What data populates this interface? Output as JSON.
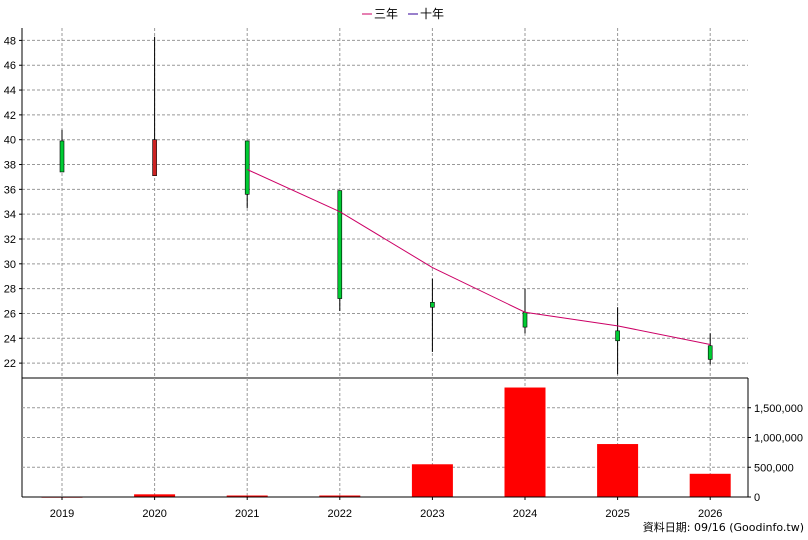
{
  "chart_data": {
    "type": "candlestick",
    "legend": [
      {
        "name": "三年",
        "color": "#cc0066"
      },
      {
        "name": "十年",
        "color": "#330099"
      }
    ],
    "legend_position": "top-center",
    "grid": true,
    "years": [
      "2019",
      "2020",
      "2021",
      "2022",
      "2023",
      "2024",
      "2025",
      "2026"
    ],
    "price_axis": {
      "ylim": [
        20.8,
        49
      ],
      "ticks": [
        "22",
        "24",
        "26",
        "28",
        "30",
        "32",
        "34",
        "36",
        "38",
        "40",
        "42",
        "44",
        "46",
        "48"
      ],
      "tick_values": [
        22,
        24,
        26,
        28,
        30,
        32,
        34,
        36,
        38,
        40,
        42,
        44,
        46,
        48
      ]
    },
    "candles": [
      {
        "year": "2019",
        "open": 37.4,
        "close": 39.9,
        "high": 40.8,
        "low": 37.4,
        "color": "#00cc33"
      },
      {
        "year": "2020",
        "open": 40.0,
        "close": 37.1,
        "high": 48.3,
        "low": 37.1,
        "color": "#cc2222"
      },
      {
        "year": "2021",
        "open": 35.6,
        "close": 39.9,
        "high": 39.9,
        "low": 34.5,
        "color": "#00cc33"
      },
      {
        "year": "2022",
        "open": 27.2,
        "close": 35.9,
        "high": 35.9,
        "low": 26.2,
        "color": "#00cc33"
      },
      {
        "year": "2023",
        "open": 26.5,
        "close": 26.9,
        "high": 28.8,
        "low": 22.9,
        "color": "#00cc33"
      },
      {
        "year": "2024",
        "open": 24.9,
        "close": 26.1,
        "high": 28.0,
        "low": 24.4,
        "color": "#00cc33"
      },
      {
        "year": "2025",
        "open": 23.8,
        "close": 24.6,
        "high": 26.5,
        "low": 21.1,
        "color": "#00cc33"
      },
      {
        "year": "2026",
        "open": 22.3,
        "close": 23.4,
        "high": 24.4,
        "low": 21.9,
        "color": "#00cc33"
      }
    ],
    "three_year_line": {
      "name": "三年",
      "color": "#cc0066",
      "points": [
        {
          "year": "2021",
          "value": 37.6
        },
        {
          "year": "2022",
          "value": 34.2
        },
        {
          "year": "2023",
          "value": 29.7
        },
        {
          "year": "2024",
          "value": 26.1
        },
        {
          "year": "2025",
          "value": 25.0
        },
        {
          "year": "2026",
          "value": 23.5
        }
      ]
    },
    "volume_axis": {
      "ylim": [
        0,
        2000000
      ],
      "ticks": [
        "0",
        "500,000",
        "1,000,000",
        "1,500,000"
      ],
      "tick_values": [
        0,
        500000,
        1000000,
        1500000
      ]
    },
    "volume": {
      "color": "#ff0000",
      "values": [
        5000,
        45000,
        25000,
        25000,
        550000,
        1840000,
        890000,
        390000
      ]
    }
  },
  "footer": {
    "text": "資料日期: 09/16  (Goodinfo.tw)"
  }
}
